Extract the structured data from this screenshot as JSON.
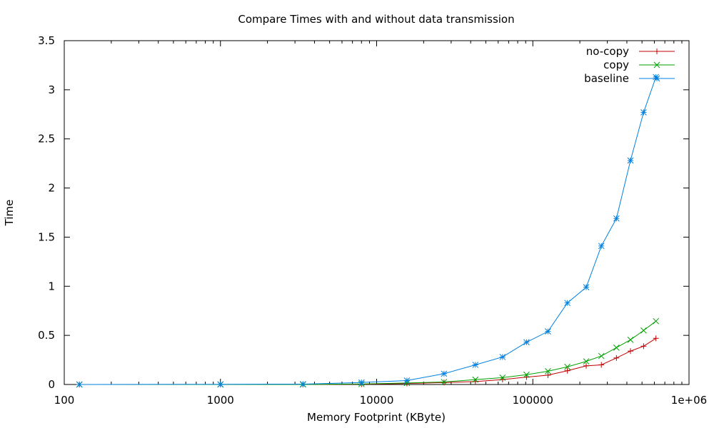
{
  "chart_data": {
    "type": "line",
    "title": "Compare Times with and without data transmission",
    "xlabel": "Memory Footprint (KByte)",
    "ylabel": "Time",
    "x_scale": "log",
    "xlim": [
      100,
      1000000
    ],
    "ylim": [
      0,
      3.5
    ],
    "x_ticks": [
      100,
      1000,
      10000,
      100000,
      1000000
    ],
    "x_tick_labels": [
      "100",
      "1000",
      "10000",
      "100000",
      "1e+06"
    ],
    "y_ticks": [
      0,
      0.5,
      1,
      1.5,
      2,
      2.5,
      3,
      3.5
    ],
    "y_tick_labels": [
      "0",
      "0.5",
      "1",
      "1.5",
      "2",
      "2.5",
      "3",
      "3.5"
    ],
    "grid": false,
    "legend_position": "top-right",
    "series": [
      {
        "name": "no-copy",
        "color": "#c00000",
        "marker": "plus",
        "points": [
          [
            125,
            0.0
          ],
          [
            1000,
            0.0
          ],
          [
            3375,
            0.0
          ],
          [
            8000,
            0.003
          ],
          [
            15625,
            0.01
          ],
          [
            27000,
            0.02
          ],
          [
            42875,
            0.03
          ],
          [
            64000,
            0.05
          ],
          [
            91125,
            0.075
          ],
          [
            125000,
            0.095
          ],
          [
            166375,
            0.14
          ],
          [
            219700,
            0.19
          ],
          [
            274625,
            0.2
          ],
          [
            343000,
            0.27
          ],
          [
            421875,
            0.34
          ],
          [
            512000,
            0.39
          ],
          [
            614125,
            0.47
          ]
        ]
      },
      {
        "name": "copy",
        "color": "#00a000",
        "marker": "cross",
        "points": [
          [
            125,
            0.0
          ],
          [
            1000,
            0.0
          ],
          [
            3375,
            0.0
          ],
          [
            8000,
            0.005
          ],
          [
            15625,
            0.015
          ],
          [
            27000,
            0.025
          ],
          [
            42875,
            0.05
          ],
          [
            64000,
            0.07
          ],
          [
            91125,
            0.1
          ],
          [
            125000,
            0.135
          ],
          [
            166375,
            0.18
          ],
          [
            219700,
            0.235
          ],
          [
            274625,
            0.29
          ],
          [
            343000,
            0.375
          ],
          [
            421875,
            0.455
          ],
          [
            512000,
            0.55
          ],
          [
            614125,
            0.645
          ]
        ]
      },
      {
        "name": "baseline",
        "color": "#0080e0",
        "marker": "star",
        "points": [
          [
            125,
            0.0
          ],
          [
            1000,
            0.002
          ],
          [
            3375,
            0.004
          ],
          [
            8000,
            0.02
          ],
          [
            15625,
            0.04
          ],
          [
            27000,
            0.11
          ],
          [
            42875,
            0.2
          ],
          [
            64000,
            0.28
          ],
          [
            91125,
            0.43
          ],
          [
            125000,
            0.54
          ],
          [
            166375,
            0.83
          ],
          [
            219700,
            0.99
          ],
          [
            274625,
            1.41
          ],
          [
            343000,
            1.69
          ],
          [
            421875,
            2.28
          ],
          [
            512000,
            2.77
          ],
          [
            614125,
            3.13
          ]
        ]
      }
    ]
  }
}
